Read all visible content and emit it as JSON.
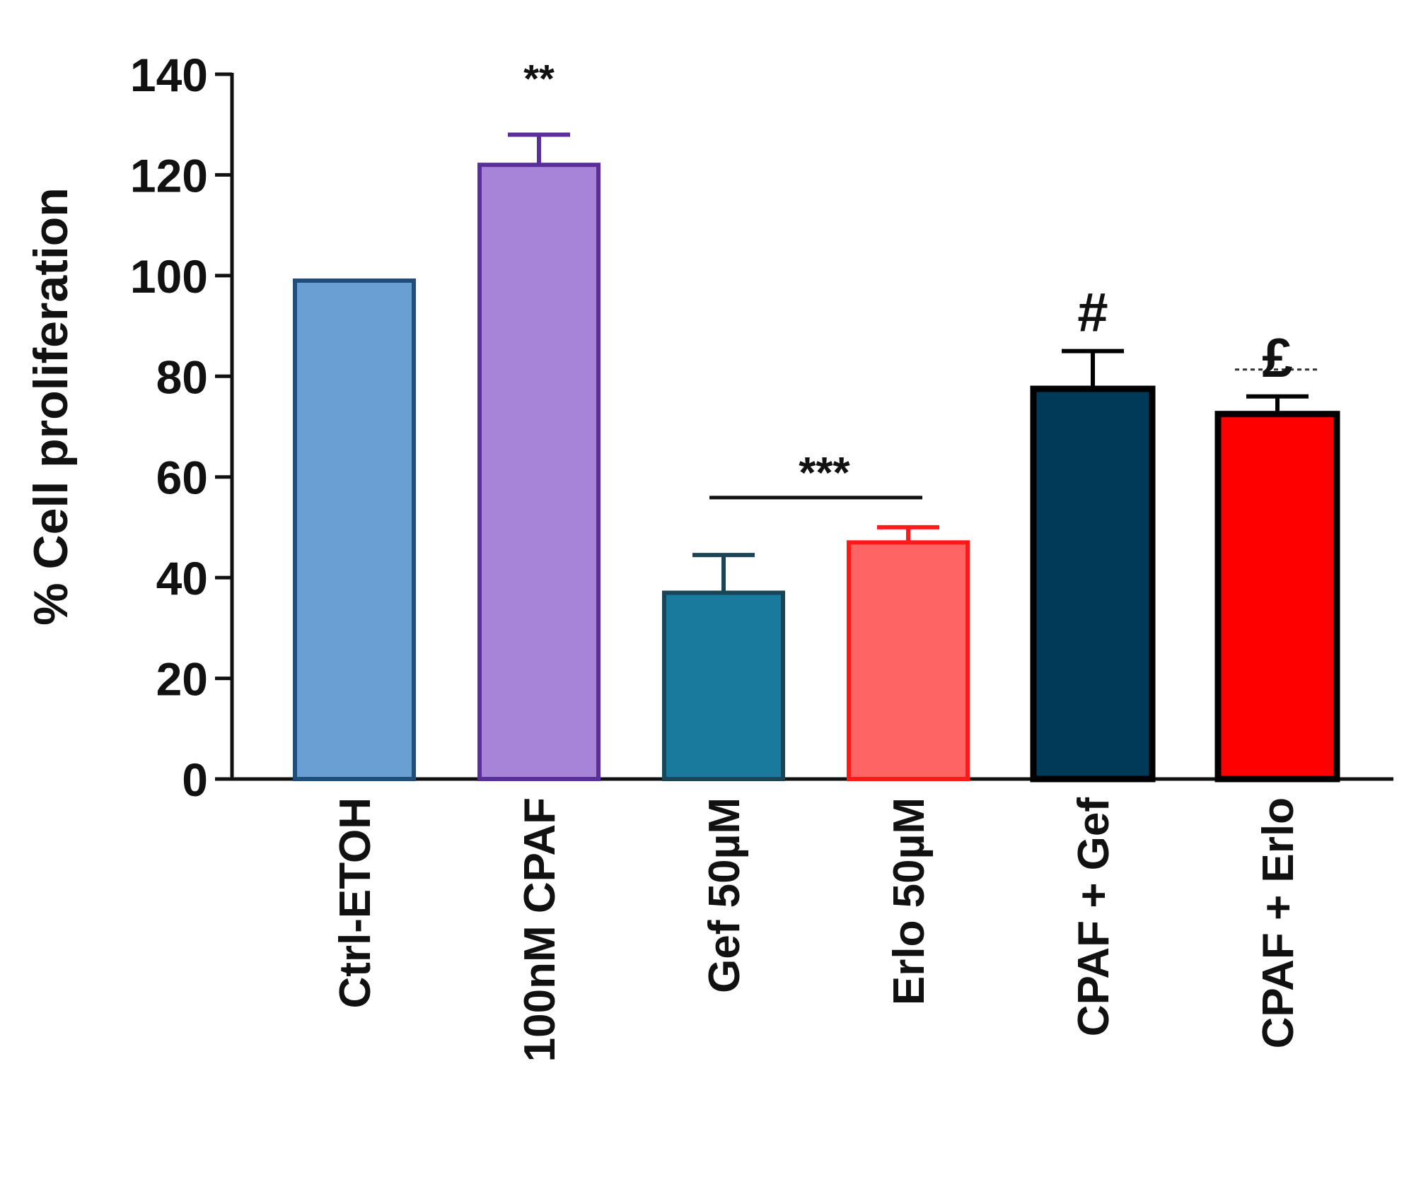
{
  "chart_data": {
    "type": "bar",
    "title": "",
    "xlabel": "",
    "ylabel": "% Cell proliferation",
    "ylim": [
      0,
      140
    ],
    "yticks": [
      0,
      20,
      40,
      60,
      80,
      100,
      120,
      140
    ],
    "grid": false,
    "legend": "none",
    "categories": [
      "Ctrl-ETOH",
      "100nM CPAF",
      "Gef 50µM",
      "Erlo 50µM",
      "CPAF + Gef",
      "CPAF + Erlo"
    ],
    "values": [
      99,
      122,
      37,
      47,
      77.5,
      72.5
    ],
    "errors": [
      0,
      6,
      7.5,
      3,
      7.5,
      3.5
    ],
    "annotations": [
      {
        "text": "**",
        "bars": [
          1
        ]
      },
      {
        "text": "***",
        "bars": [
          2,
          3
        ],
        "bracket": true
      },
      {
        "text": "#",
        "bars": [
          4
        ]
      },
      {
        "text": "£",
        "bars": [
          5
        ],
        "dashed_line": true
      }
    ],
    "colors": {
      "fills": [
        "#6a9fd4",
        "#a784d8",
        "#1a7a9e",
        "#ff6464",
        "#003a58",
        "#ff0000"
      ],
      "edges": [
        "#1f4e7a",
        "#5a2f99",
        "#1a4556",
        "#ff1a1a",
        "#000000",
        "#000000"
      ]
    }
  }
}
